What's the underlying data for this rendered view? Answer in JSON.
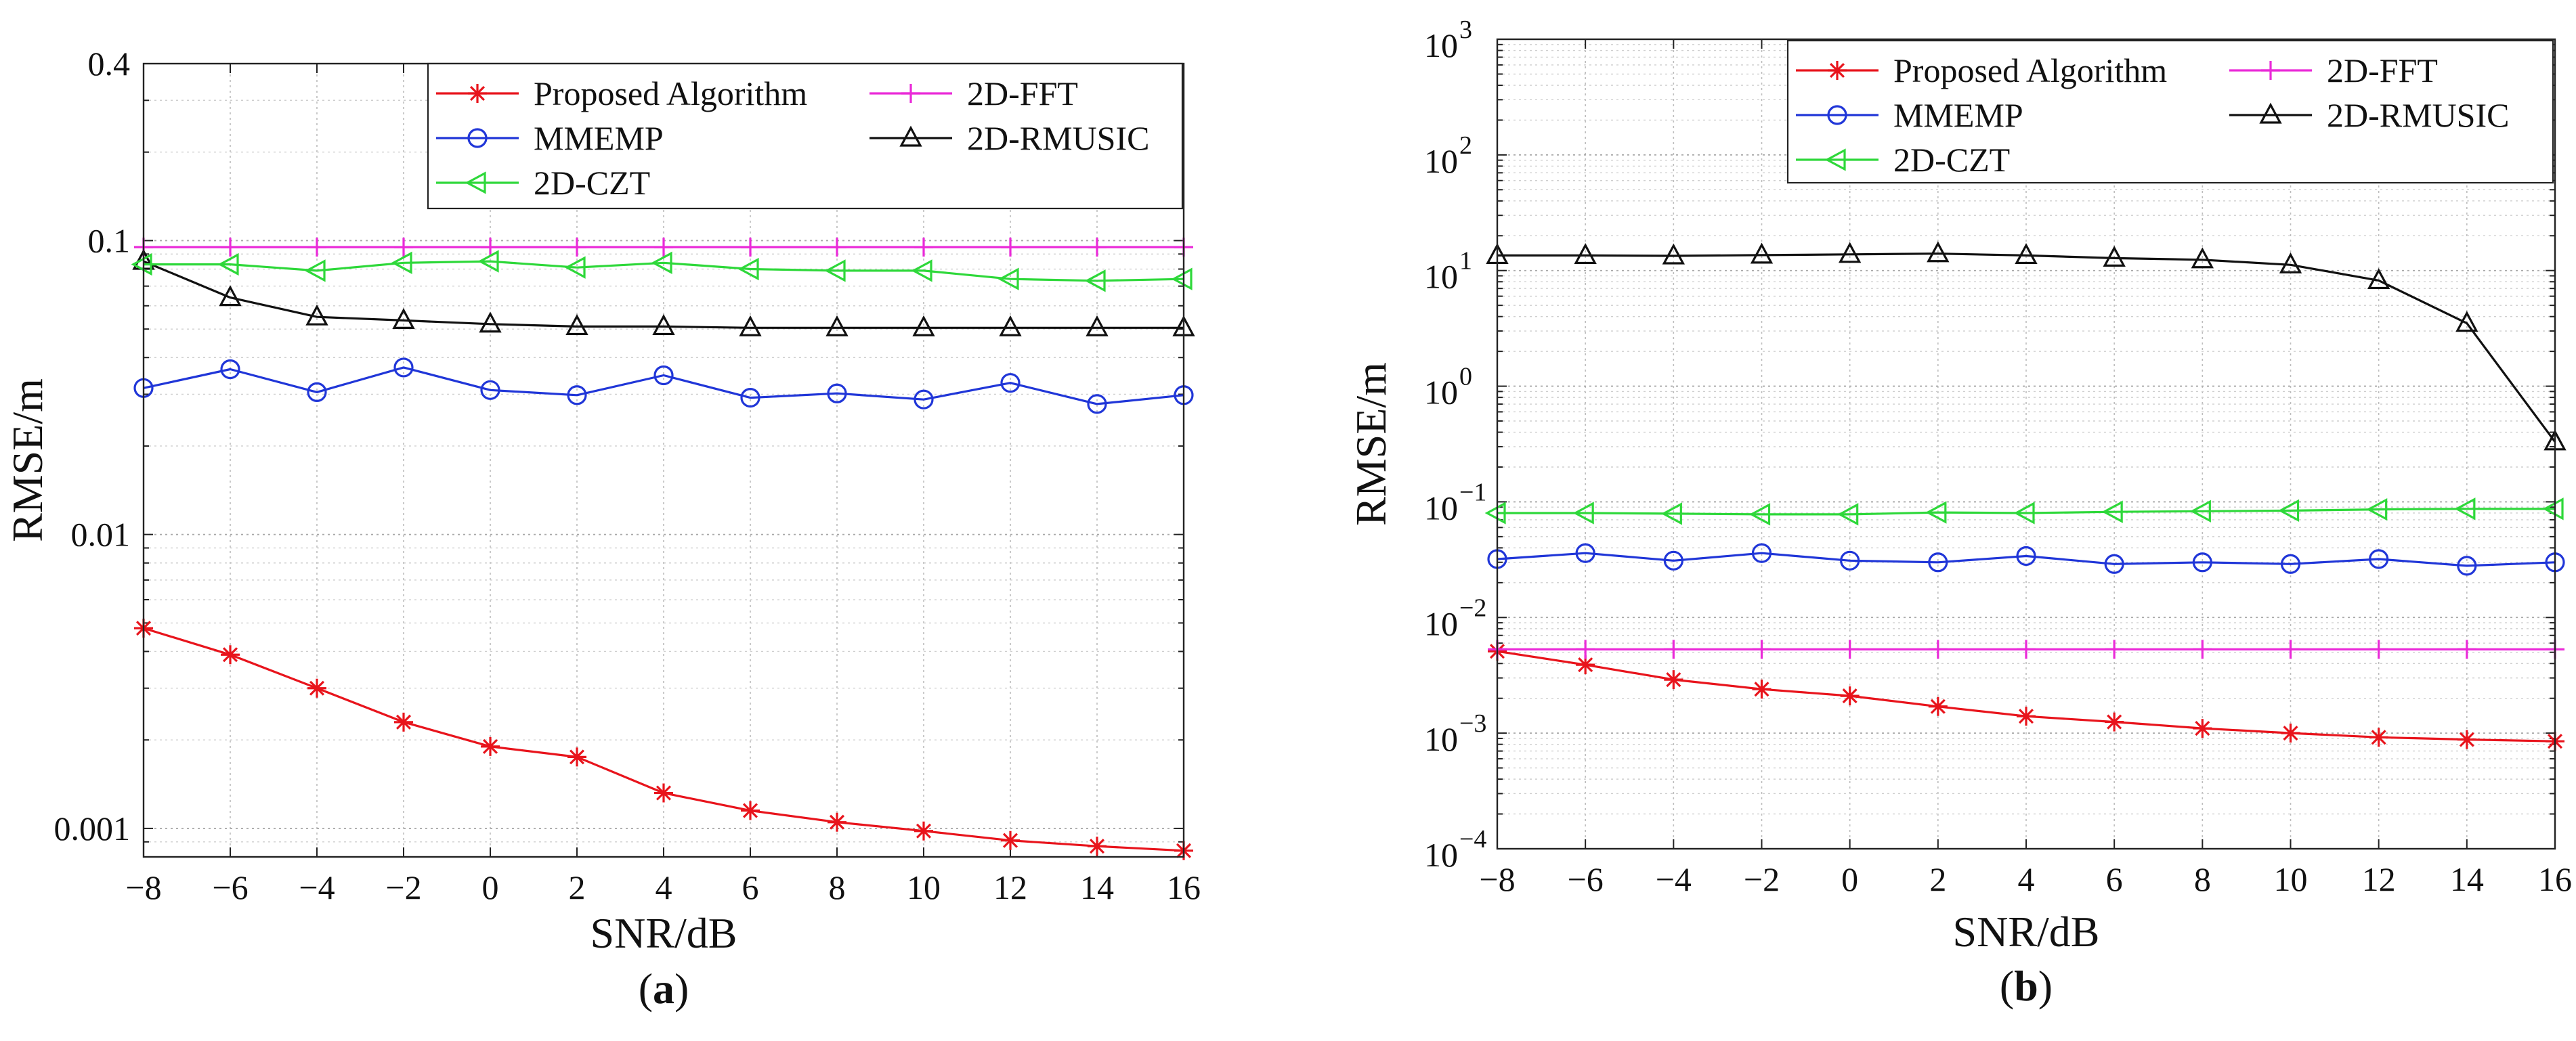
{
  "chart_data": [
    {
      "id": "a",
      "type": "line",
      "yscale": "log",
      "caption": "(a)",
      "caption_letter": "a",
      "xlabel": "SNR/dB",
      "ylabel": "RMSE/m",
      "xlim": [
        -8,
        16
      ],
      "ylim": [
        0.0008,
        0.4
      ],
      "x": [
        -8,
        -6,
        -4,
        -2,
        0,
        2,
        4,
        6,
        8,
        10,
        12,
        14,
        16
      ],
      "x_tick_labels": [
        "−8",
        "−6",
        "−4",
        "−2",
        "0",
        "2",
        "4",
        "6",
        "8",
        "10",
        "12",
        "14",
        "16"
      ],
      "y_ticks": [
        {
          "value": 0.001,
          "label": "0.001"
        },
        {
          "value": 0.01,
          "label": "0.01"
        },
        {
          "value": 0.1,
          "label": "0.1"
        },
        {
          "value": 0.4,
          "label": "0.4"
        }
      ],
      "grid": true,
      "legend_position": "top-right",
      "legend_columns": 2,
      "series": [
        {
          "name": "Proposed Algorithm",
          "color": "#e8141c",
          "marker": "asterisk",
          "values": [
            0.0048,
            0.0039,
            0.003,
            0.0023,
            0.0019,
            0.00175,
            0.00132,
            0.00115,
            0.00105,
            0.00098,
            0.00091,
            0.00087,
            0.00084
          ]
        },
        {
          "name": "2D-FFT",
          "color": "#ea2ad8",
          "marker": "plus",
          "values": [
            0.095,
            0.095,
            0.095,
            0.095,
            0.095,
            0.095,
            0.095,
            0.095,
            0.095,
            0.095,
            0.095,
            0.095,
            0.095
          ]
        },
        {
          "name": "MMEMP",
          "color": "#2036d8",
          "marker": "circle",
          "values": [
            0.0315,
            0.0365,
            0.0305,
            0.037,
            0.031,
            0.0298,
            0.0348,
            0.0292,
            0.0302,
            0.0288,
            0.0328,
            0.0278,
            0.0298
          ]
        },
        {
          "name": "2D-RMUSIC",
          "color": "#111111",
          "marker": "triangle-up",
          "values": [
            0.085,
            0.064,
            0.055,
            0.0535,
            0.052,
            0.051,
            0.051,
            0.0505,
            0.0505,
            0.0505,
            0.0505,
            0.0505,
            0.0505
          ]
        },
        {
          "name": "2D-CZT",
          "color": "#2ed83a",
          "marker": "triangle-left",
          "values": [
            0.083,
            0.083,
            0.079,
            0.084,
            0.085,
            0.081,
            0.084,
            0.08,
            0.079,
            0.079,
            0.074,
            0.073,
            0.074
          ]
        }
      ]
    },
    {
      "id": "b",
      "type": "line",
      "yscale": "log",
      "caption": "(b)",
      "caption_letter": "b",
      "xlabel": "SNR/dB",
      "ylabel": "RMSE/m",
      "xlim": [
        -8,
        16
      ],
      "ylim": [
        0.0001,
        1000
      ],
      "x": [
        -8,
        -6,
        -4,
        -2,
        0,
        2,
        4,
        6,
        8,
        10,
        12,
        14,
        16
      ],
      "x_tick_labels": [
        "−8",
        "−6",
        "−4",
        "−2",
        "0",
        "2",
        "4",
        "6",
        "8",
        "10",
        "12",
        "14",
        "16"
      ],
      "y_ticks": [
        {
          "value": 0.0001,
          "base": "10",
          "exp": "−4"
        },
        {
          "value": 0.001,
          "base": "10",
          "exp": "−3"
        },
        {
          "value": 0.01,
          "base": "10",
          "exp": "−2"
        },
        {
          "value": 0.1,
          "base": "10",
          "exp": "−1"
        },
        {
          "value": 1,
          "base": "10",
          "exp": "0"
        },
        {
          "value": 10,
          "base": "10",
          "exp": "1"
        },
        {
          "value": 100,
          "base": "10",
          "exp": "2"
        },
        {
          "value": 1000,
          "base": "10",
          "exp": "3"
        }
      ],
      "grid": true,
      "legend_position": "top-right",
      "legend_columns": 2,
      "series": [
        {
          "name": "Proposed Algorithm",
          "color": "#e8141c",
          "marker": "asterisk",
          "values": [
            0.0051,
            0.0039,
            0.0029,
            0.0024,
            0.0021,
            0.0017,
            0.0014,
            0.00125,
            0.0011,
            0.001,
            0.00092,
            0.00088,
            0.00085
          ]
        },
        {
          "name": "2D-FFT",
          "color": "#ea2ad8",
          "marker": "plus",
          "values": [
            0.0053,
            0.0053,
            0.0053,
            0.0053,
            0.0053,
            0.0053,
            0.0053,
            0.0053,
            0.0053,
            0.0053,
            0.0053,
            0.0053,
            0.0053
          ]
        },
        {
          "name": "MMEMP",
          "color": "#2036d8",
          "marker": "circle",
          "values": [
            0.032,
            0.036,
            0.031,
            0.036,
            0.031,
            0.03,
            0.034,
            0.029,
            0.03,
            0.029,
            0.032,
            0.028,
            0.03
          ]
        },
        {
          "name": "2D-RMUSIC",
          "color": "#111111",
          "marker": "triangle-up",
          "values": [
            13.5,
            13.5,
            13.4,
            13.6,
            13.8,
            14,
            13.5,
            12.8,
            12.4,
            11.2,
            8.2,
            3.5,
            0.33
          ]
        },
        {
          "name": "2D-CZT",
          "color": "#2ed83a",
          "marker": "triangle-left",
          "values": [
            0.08,
            0.08,
            0.079,
            0.078,
            0.078,
            0.081,
            0.08,
            0.082,
            0.083,
            0.084,
            0.086,
            0.087,
            0.087
          ]
        }
      ]
    }
  ]
}
